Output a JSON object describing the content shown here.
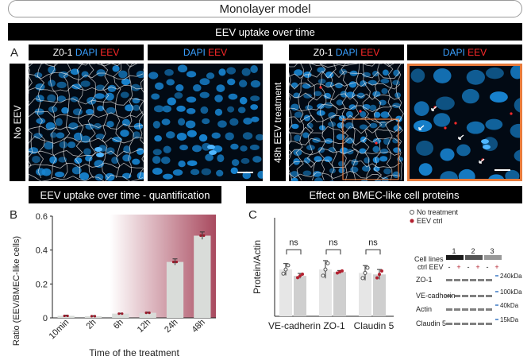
{
  "header": {
    "title": "Monolayer model"
  },
  "section_top": {
    "title": "EEV uptake over time"
  },
  "panel_a": {
    "letter": "A",
    "row_labels": [
      "No EEV",
      "48h EEV treatment"
    ],
    "chip_zo1": "Z0-1",
    "chip_dapi": "DAPI",
    "chip_eev": "EEV"
  },
  "panel_b": {
    "letter": "B",
    "title": "EEV uptake over time - quantification"
  },
  "panel_c": {
    "letter": "C",
    "title": "Effect on BMEC-like cell proteins"
  },
  "blot": {
    "legend_no_treatment": "No treatment",
    "legend_eev": "EEV ctrl",
    "cell_lines_label": "Cell lines",
    "ctrl_eev_label": "ctrl EEV",
    "lanes": [
      "1",
      "2",
      "3"
    ],
    "ctrl_sign": "-",
    "eev_sign": "+",
    "rows": [
      {
        "name": "ZO-1",
        "kda": "240kDa"
      },
      {
        "name": "VE-cadherin",
        "kda": "100kDa"
      },
      {
        "name": "Actin",
        "kda": "40kDa"
      },
      {
        "name": "Claudin 5",
        "kda": "15kDa"
      }
    ]
  },
  "colors": {
    "dapi": "#3aa0ff",
    "eev": "#ff2a2a",
    "zo1": "#ffffff",
    "treatment_shade": "#a94a5f",
    "bar": "#d9dcd9",
    "accent_box": "#e77b3c"
  },
  "chart_data": [
    {
      "type": "bar",
      "title": "",
      "ylabel": "Ratio (EEV/BMEC-like cells)",
      "xlabel": "Time of the treatment",
      "ylim": [
        0,
        0.6
      ],
      "yticks": [
        "0",
        "0.2",
        "0.4",
        "0.6"
      ],
      "categories": [
        "10min",
        "2h",
        "6h",
        "12h",
        "24h",
        "48h"
      ],
      "values": [
        0.012,
        0.01,
        0.025,
        0.03,
        0.33,
        0.485
      ],
      "errors": [
        0.004,
        0.003,
        0.003,
        0.004,
        0.018,
        0.022
      ]
    },
    {
      "type": "bar",
      "title": "",
      "ylabel": "Protein/Actin",
      "xlabel": "",
      "ylim": [
        0,
        2
      ],
      "categories": [
        "VE-cadherin",
        "ZO-1",
        "Claudin 5"
      ],
      "significance": [
        "ns",
        "ns",
        "ns"
      ],
      "series": [
        {
          "name": "No treatment",
          "values": [
            0.95,
            0.95,
            0.88
          ],
          "errors": [
            0.12,
            0.18,
            0.15
          ]
        },
        {
          "name": "EEV ctrl",
          "values": [
            0.82,
            0.9,
            0.85
          ],
          "errors": [
            0.05,
            0.03,
            0.1
          ]
        }
      ]
    }
  ]
}
